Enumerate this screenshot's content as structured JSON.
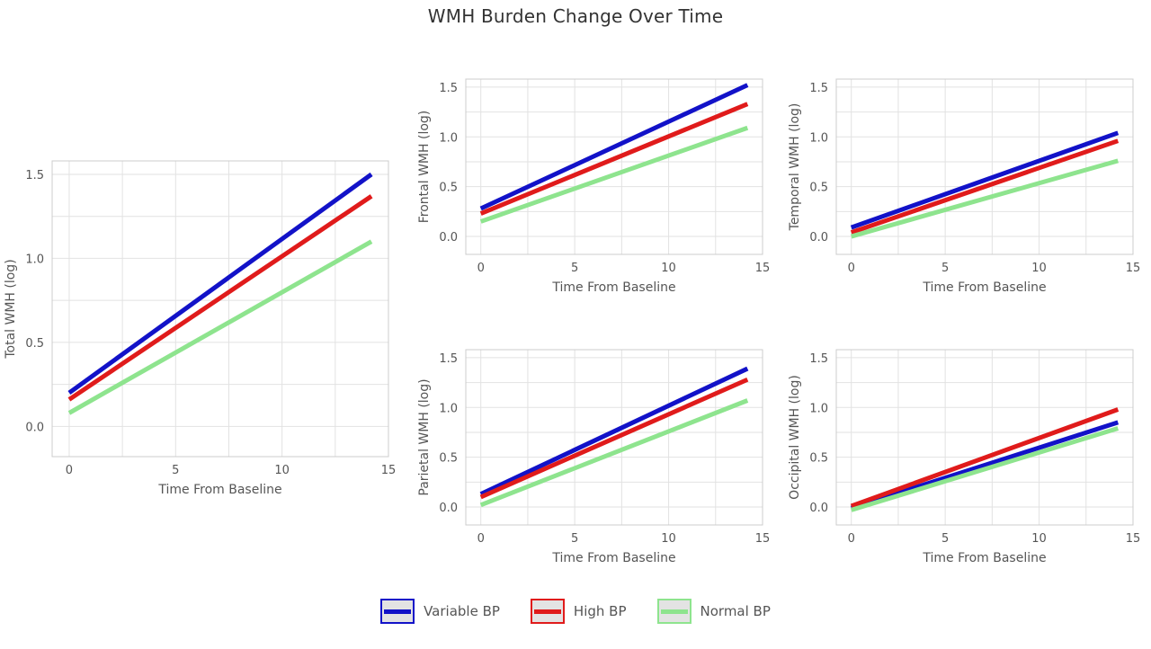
{
  "title": "WMH Burden Change Over Time",
  "chart_data": [
    {
      "type": "line",
      "xlabel": "Time From Baseline",
      "ylabel": "Total WMH (log)",
      "xlim": [
        -0.8,
        15
      ],
      "ylim": [
        -0.18,
        1.58
      ],
      "xticks": [
        0,
        5,
        10,
        15
      ],
      "yticks": [
        0.0,
        0.5,
        1.0,
        1.5
      ],
      "grid": true,
      "series": [
        {
          "name": "Variable BP",
          "color": "#1212c8",
          "x": [
            0,
            14.2
          ],
          "y": [
            0.2,
            1.5
          ]
        },
        {
          "name": "High BP",
          "color": "#e01b1b",
          "x": [
            0,
            14.2
          ],
          "y": [
            0.16,
            1.37
          ]
        },
        {
          "name": "Normal BP",
          "color": "#8ee48e",
          "x": [
            0,
            14.2
          ],
          "y": [
            0.08,
            1.1
          ]
        }
      ]
    },
    {
      "type": "line",
      "xlabel": "Time From Baseline",
      "ylabel": "Frontal WMH (log)",
      "xlim": [
        -0.8,
        15
      ],
      "ylim": [
        -0.18,
        1.58
      ],
      "xticks": [
        0,
        5,
        10,
        15
      ],
      "yticks": [
        0.0,
        0.5,
        1.0,
        1.5
      ],
      "grid": true,
      "series": [
        {
          "name": "Variable BP",
          "color": "#1212c8",
          "x": [
            0,
            14.2
          ],
          "y": [
            0.28,
            1.52
          ]
        },
        {
          "name": "High BP",
          "color": "#e01b1b",
          "x": [
            0,
            14.2
          ],
          "y": [
            0.23,
            1.33
          ]
        },
        {
          "name": "Normal BP",
          "color": "#8ee48e",
          "x": [
            0,
            14.2
          ],
          "y": [
            0.15,
            1.09
          ]
        }
      ]
    },
    {
      "type": "line",
      "xlabel": "Time From Baseline",
      "ylabel": "Temporal WMH (log)",
      "xlim": [
        -0.8,
        15
      ],
      "ylim": [
        -0.18,
        1.58
      ],
      "xticks": [
        0,
        5,
        10,
        15
      ],
      "yticks": [
        0.0,
        0.5,
        1.0,
        1.5
      ],
      "grid": true,
      "series": [
        {
          "name": "Variable BP",
          "color": "#1212c8",
          "x": [
            0,
            14.2
          ],
          "y": [
            0.09,
            1.04
          ]
        },
        {
          "name": "High BP",
          "color": "#e01b1b",
          "x": [
            0,
            14.2
          ],
          "y": [
            0.04,
            0.96
          ]
        },
        {
          "name": "Normal BP",
          "color": "#8ee48e",
          "x": [
            0,
            14.2
          ],
          "y": [
            0.0,
            0.76
          ]
        }
      ]
    },
    {
      "type": "line",
      "xlabel": "Time From Baseline",
      "ylabel": "Parietal WMH (log)",
      "xlim": [
        -0.8,
        15
      ],
      "ylim": [
        -0.18,
        1.58
      ],
      "xticks": [
        0,
        5,
        10,
        15
      ],
      "yticks": [
        0.0,
        0.5,
        1.0,
        1.5
      ],
      "grid": true,
      "series": [
        {
          "name": "Variable BP",
          "color": "#1212c8",
          "x": [
            0,
            14.2
          ],
          "y": [
            0.13,
            1.39
          ]
        },
        {
          "name": "High BP",
          "color": "#e01b1b",
          "x": [
            0,
            14.2
          ],
          "y": [
            0.1,
            1.28
          ]
        },
        {
          "name": "Normal BP",
          "color": "#8ee48e",
          "x": [
            0,
            14.2
          ],
          "y": [
            0.02,
            1.07
          ]
        }
      ]
    },
    {
      "type": "line",
      "xlabel": "Time From Baseline",
      "ylabel": "Occipital WMH (log)",
      "xlim": [
        -0.8,
        15
      ],
      "ylim": [
        -0.18,
        1.58
      ],
      "xticks": [
        0,
        5,
        10,
        15
      ],
      "yticks": [
        0.0,
        0.5,
        1.0,
        1.5
      ],
      "grid": true,
      "series": [
        {
          "name": "Variable BP",
          "color": "#1212c8",
          "x": [
            0,
            14.2
          ],
          "y": [
            -0.01,
            0.85
          ]
        },
        {
          "name": "High BP",
          "color": "#e01b1b",
          "x": [
            0,
            14.2
          ],
          "y": [
            0.01,
            0.98
          ]
        },
        {
          "name": "Normal BP",
          "color": "#8ee48e",
          "x": [
            0,
            14.2
          ],
          "y": [
            -0.03,
            0.79
          ]
        }
      ]
    }
  ],
  "legend": {
    "placement": "bottom-center",
    "items": [
      {
        "label": "Variable BP",
        "color": "#1212c8"
      },
      {
        "label": "High BP",
        "color": "#e01b1b"
      },
      {
        "label": "Normal BP",
        "color": "#8ee48e"
      }
    ]
  }
}
